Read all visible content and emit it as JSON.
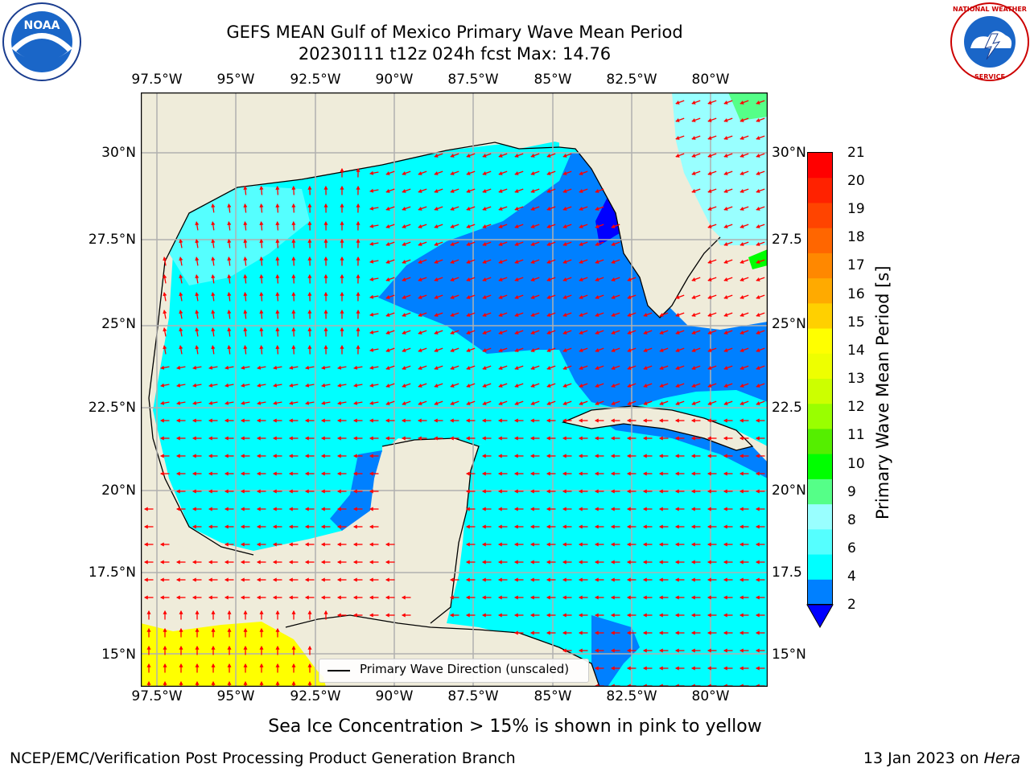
{
  "title": {
    "line1": "GEFS MEAN Gulf of Mexico Primary Wave Mean Period",
    "line2": "20230111 t12z 024h fcst   Max: 14.76"
  },
  "logos": {
    "left": {
      "name": "noaa-logo",
      "text": "NOAA"
    },
    "right": {
      "name": "nws-logo",
      "text": "NATIONAL WEATHER SERVICE"
    }
  },
  "map": {
    "lon_ticks": [
      "97.5°W",
      "95°W",
      "92.5°W",
      "90°W",
      "87.5°W",
      "85°W",
      "82.5°W",
      "80°W"
    ],
    "lat_ticks_left": [
      "30°N",
      "27.5°N",
      "25°N",
      "22.5°N",
      "20°N",
      "17.5°N",
      "15°N"
    ],
    "lat_ticks_right": [
      "30°N",
      "27.5",
      "25°N",
      "22.5",
      "20°N",
      "17.5",
      "15°N"
    ],
    "legend": "Primary Wave Direction (unscaled)",
    "colors": {
      "land": "#efecda",
      "ocean_low": "#0080ff",
      "ocean_mid": "#00ffff",
      "ocean_high": "#99ffff",
      "swell_yellow": "#ffff00",
      "arrow": "#ff0000",
      "grid": "#b0b0b0"
    }
  },
  "colorbar": {
    "label": "Primary Wave Mean Period [s]",
    "ticks": [
      "21",
      "20",
      "19",
      "18",
      "17",
      "16",
      "15",
      "14",
      "13",
      "12",
      "11",
      "10",
      "9",
      "8",
      "6",
      "4",
      "2"
    ],
    "colors": [
      "#ff0000",
      "#ff2200",
      "#ff4400",
      "#ff6600",
      "#ff8800",
      "#ffaa00",
      "#ffd000",
      "#ffff00",
      "#eeff00",
      "#ccff00",
      "#99ff00",
      "#55ee00",
      "#00ff00",
      "#55ff88",
      "#99ffff",
      "#55ffff",
      "#00ffff",
      "#0080ff"
    ],
    "extend_color": "#0000ff"
  },
  "caption": "Sea Ice Concentration > 15% is shown in pink to yellow",
  "footer": {
    "left": "NCEP/EMC/Verification Post Processing Product Generation Branch",
    "right_date": "13 Jan 2023 on ",
    "right_host": "Hera"
  }
}
